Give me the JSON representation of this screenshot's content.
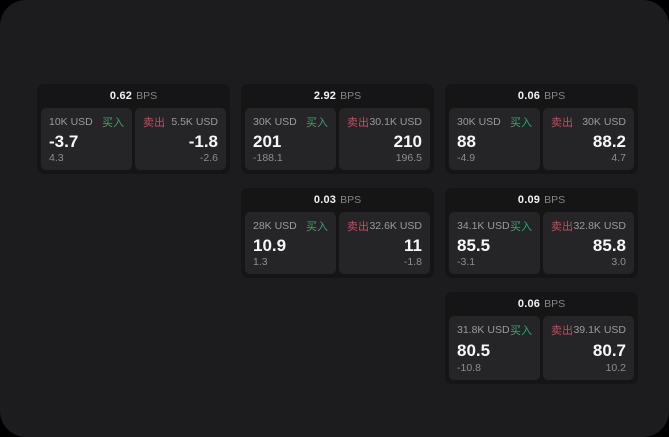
{
  "labels": {
    "bps": "BPS",
    "buy": "买入",
    "sell": "卖出"
  },
  "colors": {
    "buy": "#3da366",
    "sell": "#c74b5e",
    "window_bg": "#1c1c1e",
    "card_bg": "#151516",
    "panel_bg": "#252528"
  },
  "cards": [
    {
      "bps": "0.62",
      "buy": {
        "notional": "10K USD",
        "price": "-3.7",
        "delta": "4.3"
      },
      "sell": {
        "notional": "5.5K USD",
        "price": "-1.8",
        "delta": "-2.6"
      }
    },
    {
      "bps": "2.92",
      "buy": {
        "notional": "30K USD",
        "price": "201",
        "delta": "-188.1"
      },
      "sell": {
        "notional": "30.1K USD",
        "price": "210",
        "delta": "196.5"
      }
    },
    {
      "bps": "0.06",
      "buy": {
        "notional": "30K USD",
        "price": "88",
        "delta": "-4.9"
      },
      "sell": {
        "notional": "30K USD",
        "price": "88.2",
        "delta": "4.7"
      }
    },
    {
      "bps": "0.03",
      "buy": {
        "notional": "28K USD",
        "price": "10.9",
        "delta": "1.3"
      },
      "sell": {
        "notional": "32.6K USD",
        "price": "11",
        "delta": "-1.8"
      }
    },
    {
      "bps": "0.09",
      "buy": {
        "notional": "34.1K USD",
        "price": "85.5",
        "delta": "-3.1"
      },
      "sell": {
        "notional": "32.8K USD",
        "price": "85.8",
        "delta": "3.0"
      }
    },
    {
      "bps": "0.06",
      "buy": {
        "notional": "31.8K USD",
        "price": "80.5",
        "delta": "-10.8"
      },
      "sell": {
        "notional": "39.1K USD",
        "price": "80.7",
        "delta": "10.2"
      }
    }
  ]
}
